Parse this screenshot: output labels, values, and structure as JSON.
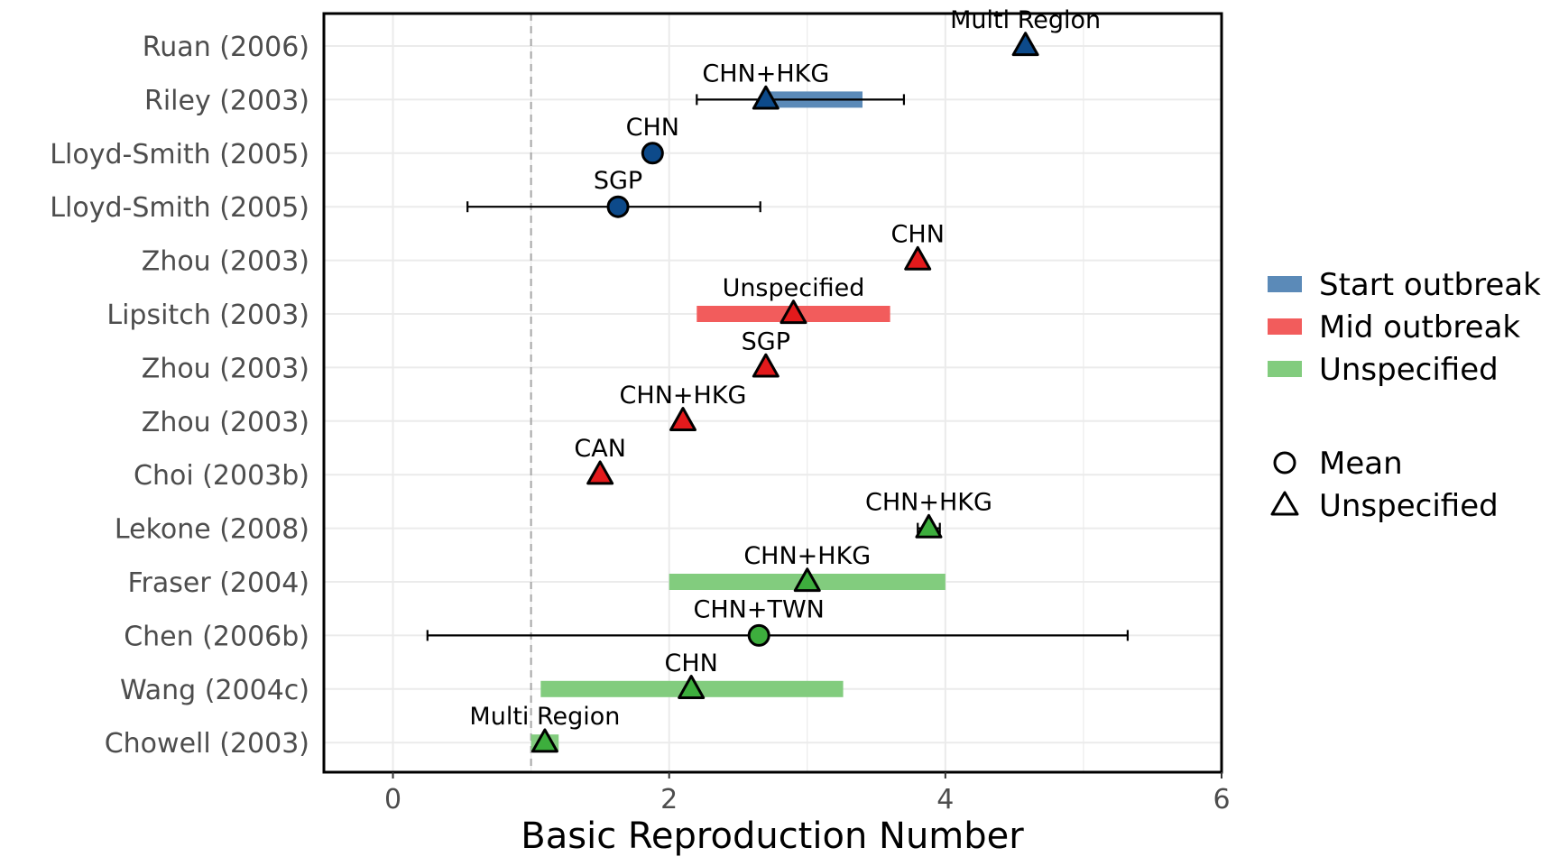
{
  "chart_data": {
    "type": "scatter",
    "xlabel": "Basic Reproduction Number",
    "xlim": [
      -0.5,
      6
    ],
    "xticks": [
      0,
      2,
      4,
      6
    ],
    "reference_line": 1,
    "grid": true,
    "legend_position": "right",
    "colors": {
      "start": "#2c5f9a",
      "start_range": "#5b8ab8",
      "mid": "#e31a1c",
      "mid_range": "#f25c5c",
      "unspecified": "#3dae3d",
      "unspecified_range": "#82cc7e",
      "dark_blue_point": "#0d4a8a"
    },
    "studies": [
      {
        "label": "Ruan (2006)",
        "region": "Multi Region",
        "value": 4.58,
        "shape": "triangle",
        "group": "start",
        "range": null,
        "ci": null
      },
      {
        "label": "Riley (2003)",
        "region": "CHN+HKG",
        "value": 2.7,
        "shape": "triangle",
        "group": "start",
        "range": [
          2.7,
          3.4
        ],
        "ci": [
          2.2,
          3.7
        ]
      },
      {
        "label": "Lloyd-Smith (2005)",
        "region": "CHN",
        "value": 1.88,
        "shape": "circle",
        "group": "start",
        "range": null,
        "ci": null
      },
      {
        "label": "Lloyd-Smith (2005)",
        "region": "SGP",
        "value": 1.63,
        "shape": "circle",
        "group": "start",
        "range": null,
        "ci": [
          0.54,
          2.66
        ]
      },
      {
        "label": "Zhou (2003)",
        "region": "CHN",
        "value": 3.8,
        "shape": "triangle",
        "group": "mid",
        "range": null,
        "ci": null
      },
      {
        "label": "Lipsitch (2003)",
        "region": "Unspecified",
        "value": 2.9,
        "shape": "triangle",
        "group": "mid",
        "range": [
          2.2,
          3.6
        ],
        "ci": null
      },
      {
        "label": "Zhou (2003)",
        "region": "SGP",
        "value": 2.7,
        "shape": "triangle",
        "group": "mid",
        "range": null,
        "ci": null
      },
      {
        "label": "Zhou (2003)",
        "region": "CHN+HKG",
        "value": 2.1,
        "shape": "triangle",
        "group": "mid",
        "range": null,
        "ci": null
      },
      {
        "label": "Choi (2003b)",
        "region": "CAN",
        "value": 1.5,
        "shape": "triangle",
        "group": "mid",
        "range": null,
        "ci": null
      },
      {
        "label": "Lekone (2008)",
        "region": "CHN+HKG",
        "value": 3.88,
        "shape": "triangle",
        "group": "unspecified",
        "range": null,
        "ci": [
          3.8,
          3.96
        ]
      },
      {
        "label": "Fraser (2004)",
        "region": "CHN+HKG",
        "value": 3.0,
        "shape": "triangle",
        "group": "unspecified",
        "range": [
          2.0,
          4.0
        ],
        "ci": null
      },
      {
        "label": "Chen (2006b)",
        "region": "CHN+TWN",
        "value": 2.65,
        "shape": "circle",
        "group": "unspecified",
        "range": null,
        "ci": [
          0.25,
          5.32
        ]
      },
      {
        "label": "Wang (2004c)",
        "region": "CHN",
        "value": 2.16,
        "shape": "triangle",
        "group": "unspecified",
        "range": [
          1.07,
          3.26
        ],
        "ci": null
      },
      {
        "label": "Chowell (2003)",
        "region": "Multi Region",
        "value": 1.1,
        "shape": "triangle",
        "group": "unspecified",
        "range": [
          1.0,
          1.2
        ],
        "ci": null
      }
    ],
    "legend": {
      "color_entries": [
        {
          "key": "start",
          "label": "Start outbreak"
        },
        {
          "key": "mid",
          "label": "Mid outbreak"
        },
        {
          "key": "unspecified",
          "label": "Unspecified"
        }
      ],
      "shape_entries": [
        {
          "shape": "circle",
          "label": "Mean"
        },
        {
          "shape": "triangle",
          "label": "Unspecified"
        }
      ]
    }
  }
}
